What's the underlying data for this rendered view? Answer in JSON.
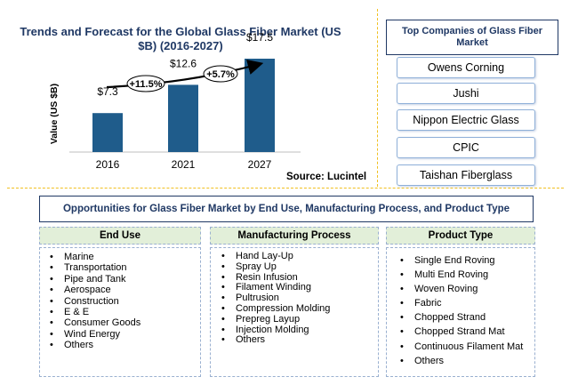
{
  "chart_data": {
    "type": "bar",
    "title": "Trends and Forecast for the Global Glass Fiber Market (US $B) (2016-2027)",
    "categories": [
      "2016",
      "2021",
      "2027"
    ],
    "values": [
      7.3,
      12.6,
      17.5
    ],
    "value_labels": [
      "$7.3",
      "$12.6",
      "$17.5"
    ],
    "ylabel": "Value (US $B)",
    "xlabel": "",
    "ylim": [
      0,
      20
    ],
    "bar_color": "#1f5c8b",
    "growth_annotations": [
      "+11.5%",
      "+5.7%"
    ],
    "source": "Source: Lucintel"
  },
  "companies": {
    "title": "Top Companies of Glass Fiber Market",
    "items": [
      "Owens Corning",
      "Jushi",
      "Nippon Electric Glass",
      "CPIC",
      "Taishan Fiberglass"
    ]
  },
  "opportunities": {
    "title": "Opportunities for Glass Fiber Market by End Use,  Manufacturing Process, and Product Type",
    "columns": [
      {
        "header": "End Use",
        "items": [
          "Marine",
          "Transportation",
          "Pipe and Tank",
          "Aerospace",
          "Construction",
          "E & E",
          "Consumer Goods",
          "Wind Energy",
          "Others"
        ]
      },
      {
        "header": "Manufacturing Process",
        "items": [
          "Hand Lay-Up",
          "Spray Up",
          "Resin Infusion",
          "Filament Winding",
          "Pultrusion",
          "Compression Molding",
          "Prepreg Layup",
          "Injection Molding",
          "Others"
        ]
      },
      {
        "header": "Product Type",
        "items": [
          "Single End Roving",
          "Multi End Roving",
          "Woven Roving",
          "Fabric",
          "Chopped Strand",
          "Chopped Strand Mat",
          "Continuous Filament Mat",
          "Others"
        ]
      }
    ]
  },
  "colors": {
    "title_blue": "#1f3864",
    "bar_blue": "#1f5c8b",
    "header_green": "#e2efd9",
    "divider_yellow": "#f0c020"
  }
}
